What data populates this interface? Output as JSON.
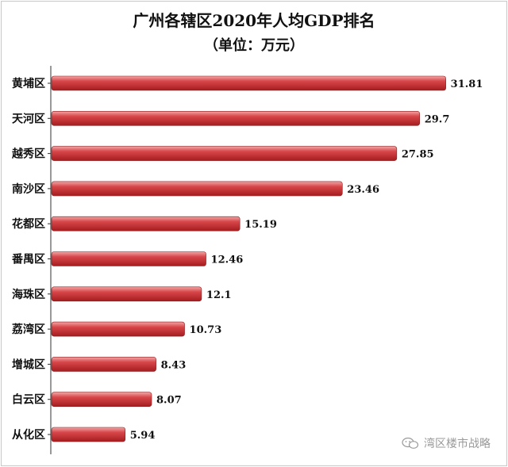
{
  "chart_data": {
    "type": "bar",
    "orientation": "horizontal",
    "title": "广州各辖区2020年人均GDP排名",
    "subtitle": "（单位：万元）",
    "categories": [
      "黄埔区",
      "天河区",
      "越秀区",
      "南沙区",
      "花都区",
      "番禺区",
      "海珠区",
      "荔湾区",
      "增城区",
      "白云区",
      "从化区"
    ],
    "values": [
      31.81,
      29.7,
      27.85,
      23.46,
      15.19,
      12.46,
      12.1,
      10.73,
      8.43,
      8.07,
      5.94
    ],
    "value_labels": [
      "31.81",
      "29.7",
      "27.85",
      "23.46",
      "15.19",
      "12.46",
      "12.1",
      "10.73",
      "8.43",
      "8.07",
      "5.94"
    ],
    "xlim": [
      0,
      32.6
    ],
    "grid": false,
    "legend": "none",
    "bar_color": "#c0282b"
  },
  "watermark": {
    "text": "湾区楼市战略",
    "icon": "wechat-icon"
  }
}
